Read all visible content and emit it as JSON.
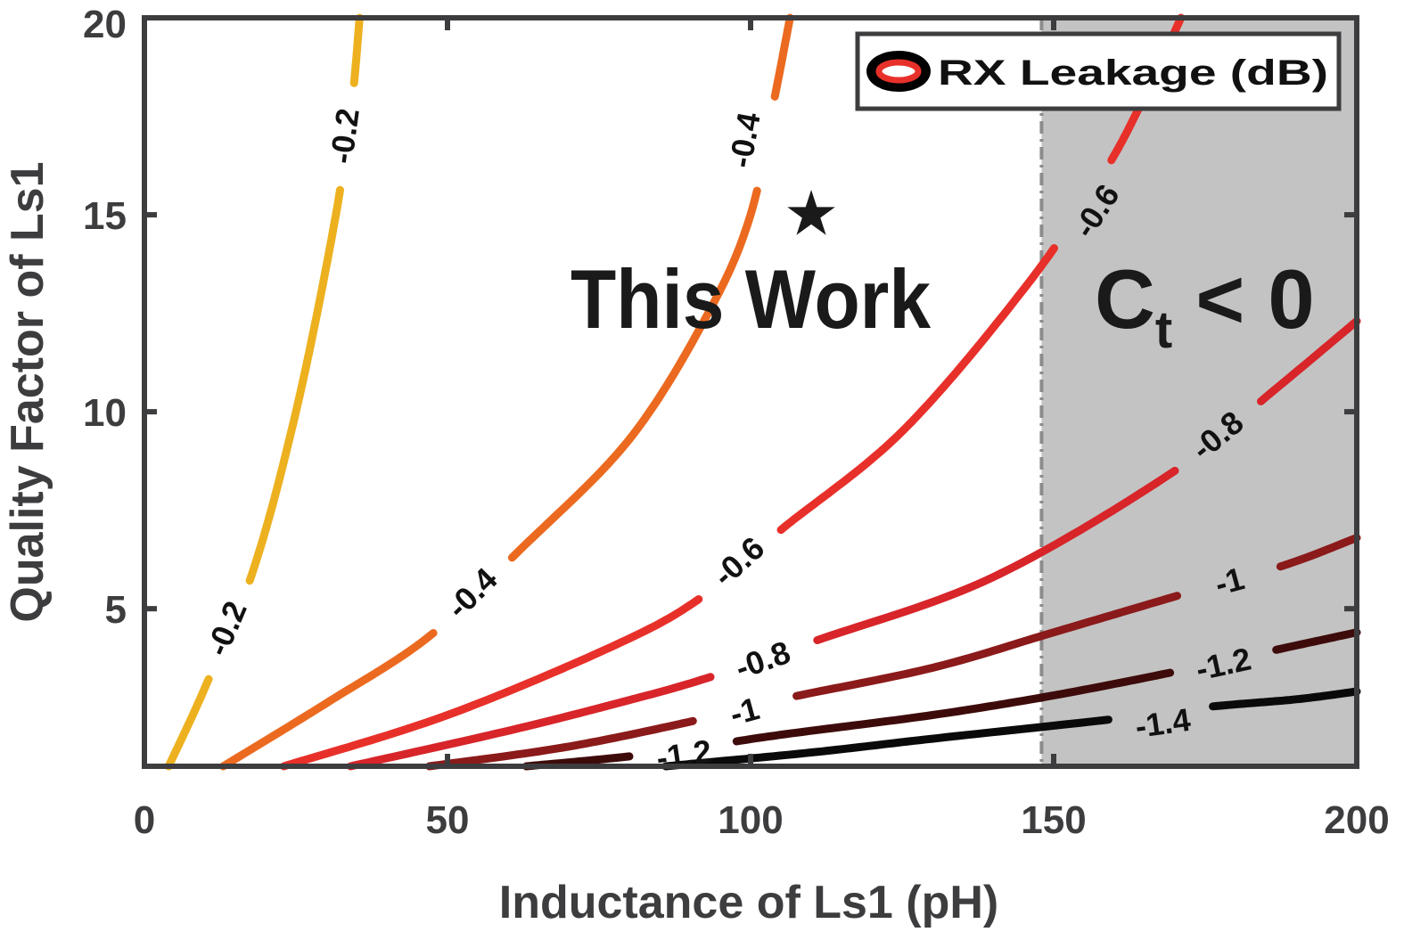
{
  "chart_data": {
    "type": "line",
    "subtype": "contour",
    "xlabel": "Inductance of Ls1 (pH)",
    "ylabel": "Quality Factor of Ls1",
    "xlim": [
      0,
      200
    ],
    "ylim": [
      1,
      20
    ],
    "xticks": [
      "0",
      "50",
      "100",
      "150",
      "200"
    ],
    "yticks": [
      "5",
      "10",
      "15",
      "20"
    ],
    "legend": {
      "label": "RX Leakage (dB)",
      "position": "top-right"
    },
    "grid": false,
    "series": [
      {
        "level": -0.2,
        "label": "-0.2",
        "color": "#EDB120",
        "x": [
          4,
          10,
          18,
          25,
          31,
          34,
          35.5
        ],
        "y": [
          1,
          3,
          6,
          10,
          14.5,
          17.5,
          20
        ],
        "labels_at": [
          [
            13.5,
            4.5
          ],
          [
            33,
            17
          ]
        ]
      },
      {
        "level": -0.4,
        "label": "-0.4",
        "color": "#EB6A20",
        "x": [
          13,
          30,
          47,
          62,
          80,
          93,
          100,
          104,
          106.5
        ],
        "y": [
          1,
          2.6,
          4.3,
          6.5,
          9.3,
          12.5,
          15,
          18,
          20
        ],
        "labels_at": [
          [
            54,
            5.4
          ],
          [
            99,
            16.9
          ]
        ]
      },
      {
        "level": -0.6,
        "label": "-0.6",
        "color": "#E8302A",
        "x": [
          23,
          50,
          78,
          92,
          105,
          125,
          145,
          158,
          165,
          171
        ],
        "y": [
          1,
          2.3,
          4.1,
          5.3,
          7,
          9.5,
          13.1,
          16,
          18,
          20
        ],
        "labels_at": [
          [
            98,
            6.2
          ],
          [
            157,
            15.1
          ]
        ]
      },
      {
        "level": -0.8,
        "label": "-0.8",
        "color": "#D7252A",
        "x": [
          34,
          60,
          78,
          92,
          111,
          140,
          170,
          186,
          200
        ],
        "y": [
          1,
          1.9,
          2.6,
          3.2,
          4.2,
          5.8,
          8.5,
          10.5,
          12.3
        ],
        "labels_at": [
          [
            102,
            3.7
          ],
          [
            177,
            9.4
          ]
        ]
      },
      {
        "level": -1,
        "label": "-1",
        "color": "#8B1A1A",
        "x": [
          47,
          70,
          92,
          105,
          130,
          150,
          172,
          188,
          200
        ],
        "y": [
          1,
          1.5,
          2.2,
          2.7,
          3.5,
          4.4,
          5.4,
          6.1,
          6.8
        ],
        "labels_at": [
          [
            99,
            2.4
          ],
          [
            179,
            5.7
          ]
        ]
      },
      {
        "level": -1.2,
        "label": "-1.2",
        "color": "#3E0B0B",
        "x": [
          63,
          80,
          92,
          105,
          130,
          150,
          170,
          188,
          200
        ],
        "y": [
          1,
          1.25,
          1.5,
          1.8,
          2.3,
          2.8,
          3.4,
          4,
          4.4
        ],
        "labels_at": [
          [
            89,
            1.3
          ],
          [
            178,
            3.6
          ]
        ]
      },
      {
        "level": -1.4,
        "label": "-1.4",
        "color": "#0A0A0A",
        "x": [
          86,
          110,
          130,
          160,
          175,
          190,
          200
        ],
        "y": [
          1,
          1.35,
          1.7,
          2.2,
          2.5,
          2.7,
          2.9
        ],
        "labels_at": [
          [
            168,
            2.1
          ]
        ]
      }
    ],
    "annotations": [
      {
        "text": "This Work",
        "marker": "★",
        "x": 110,
        "y": 15
      },
      {
        "text_main": "C",
        "text_sub": "t",
        "text_tail": " < 0",
        "region": "shaded",
        "x_from": 148,
        "x_to": 200
      }
    ],
    "shaded_region_color": "#c3c3c3"
  }
}
